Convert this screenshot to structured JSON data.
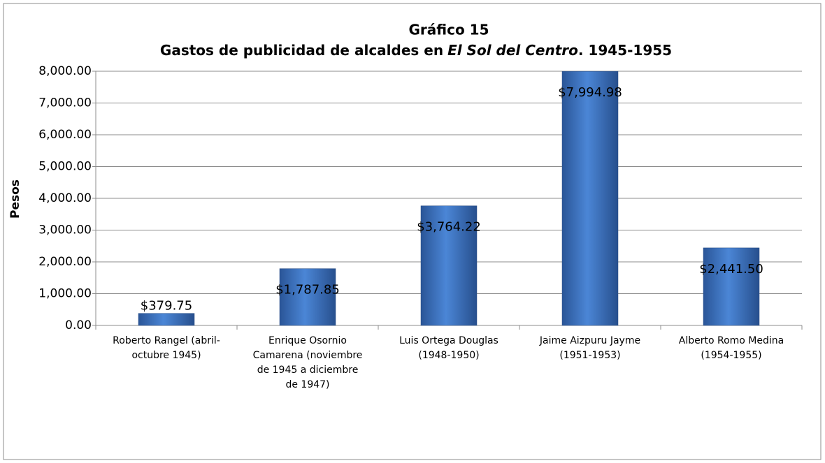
{
  "chart_data": {
    "type": "bar",
    "title": "Gráfico 15",
    "subtitle": [
      "Gastos de publicidad de alcaldes en",
      "El Sol del Centro",
      ". 1945-1955"
    ],
    "ylabel": "Pesos",
    "categories": [
      [
        "Roberto Rangel (abril-",
        "octubre 1945)"
      ],
      [
        "Enrique Osornio",
        "Camarena (noviembre",
        "de 1945 a diciembre",
        "de 1947)"
      ],
      [
        "Luis Ortega Douglas",
        "(1948-1950)"
      ],
      [
        "Jaime Aizpuru Jayme",
        "(1951-1953)"
      ],
      [
        "Alberto Romo Medina",
        "(1954-1955)"
      ]
    ],
    "values": [
      379.75,
      1787.85,
      3764.22,
      7994.98,
      2441.5
    ],
    "value_labels": [
      "$379.75",
      "$1,787.85",
      "$3,764.22",
      "$7,994.98",
      "$2,441.50"
    ],
    "color": "#3f74c0",
    "ylim": [
      0,
      8000
    ],
    "yticks": [
      {
        "value": 0,
        "label": "0.00"
      },
      {
        "value": 1000,
        "label": "1,000.00"
      },
      {
        "value": 2000,
        "label": "2,000.00"
      },
      {
        "value": 3000,
        "label": "3,000.00"
      },
      {
        "value": 4000,
        "label": "4,000.00"
      },
      {
        "value": 5000,
        "label": "5,000.00"
      },
      {
        "value": 6000,
        "label": "6,000.00"
      },
      {
        "value": 7000,
        "label": "7,000.00"
      },
      {
        "value": 8000,
        "label": "8,000.00"
      }
    ],
    "grid": true
  }
}
